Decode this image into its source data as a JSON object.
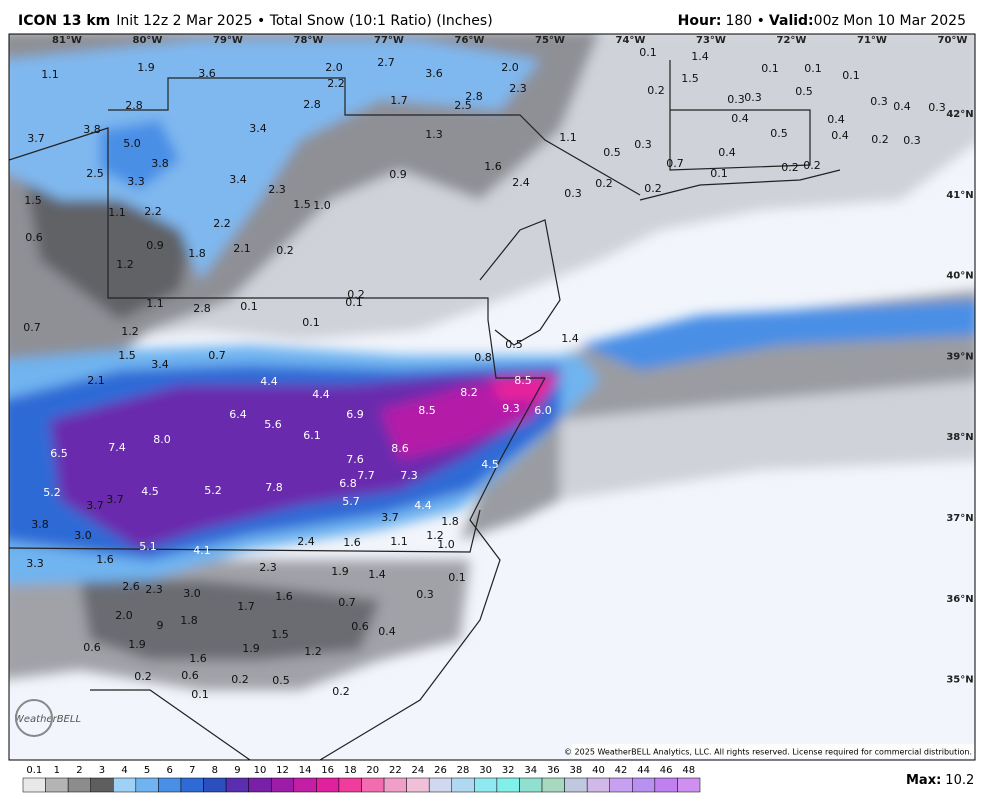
{
  "header": {
    "model": "ICON 13 km",
    "description": "Init 12z 2 Mar 2025 • Total Snow (10:1 Ratio) (Inches)",
    "hour_label": "Hour:",
    "hour_value": "180 •",
    "valid_label": "Valid:",
    "valid_value": "00z Mon 10 Mar 2025"
  },
  "longitude_labels": [
    "81°W",
    "80°W",
    "79°W",
    "78°W",
    "77°W",
    "76°W",
    "75°W",
    "74°W",
    "73°W",
    "72°W",
    "71°W",
    "70°W"
  ],
  "latitude_labels": [
    "42°N",
    "41°N",
    "40°N",
    "39°N",
    "38°N",
    "37°N",
    "36°N",
    "35°N"
  ],
  "snow_labels": [
    "1.1",
    "1.9",
    "3.6",
    "2.0",
    "2.2",
    "2.7",
    "3.6",
    "2.0",
    "2.3",
    "0.1",
    "1.4",
    "1.5",
    "0.1",
    "0.1",
    "0.1",
    "0.2",
    "0.5",
    "0.3",
    "0.3",
    "0.3",
    "0.4",
    "0.3",
    "2.8",
    "2.8",
    "1.7",
    "2.5",
    "2.8",
    "0.4",
    "0.4",
    "3.7",
    "3.8",
    "5.0",
    "3.4",
    "1.3",
    "1.1",
    "0.5",
    "0.3",
    "0.4",
    "0.2",
    "0.3",
    "0.5",
    "0.4",
    "0.7",
    "3.8",
    "1.6",
    "2.5",
    "3.3",
    "3.4",
    "0.9",
    "2.4",
    "0.1",
    "0.2",
    "0.2",
    "0.2",
    "0.2",
    "0.3",
    "1.5",
    "2.3",
    "1.5",
    "1.0",
    "1.1",
    "2.2",
    "2.2",
    "0.6",
    "0.9",
    "2.1",
    "0.2",
    "1.8",
    "1.2",
    "0.2",
    "0.1",
    "1.1",
    "2.8",
    "0.1",
    "0.1",
    "0.7",
    "1.2",
    "0.5",
    "1.4",
    "1.5",
    "0.7",
    "0.8",
    "3.4",
    "2.1",
    "4.4",
    "8.5",
    "4.4",
    "8.2",
    "9.3",
    "6.0",
    "6.4",
    "6.9",
    "8.5",
    "5.6",
    "6.1",
    "8.0",
    "7.4",
    "8.6",
    "6.5",
    "7.6",
    "4.5",
    "7.7",
    "7.3",
    "6.8",
    "7.8",
    "5.2",
    "4.5",
    "5.2",
    "3.7",
    "3.7",
    "5.7",
    "4.4",
    "3.8",
    "3.7",
    "1.8",
    "3.0",
    "1.2",
    "2.4",
    "1.6",
    "1.1",
    "1.0",
    "5.1",
    "4.1",
    "3.3",
    "1.6",
    "2.3",
    "1.9",
    "1.4",
    "0.1",
    "2.6",
    "2.3",
    "3.0",
    "1.6",
    "0.3",
    "1.7",
    "0.7",
    "2.0",
    "9",
    "1.8",
    "0.6",
    "0.4",
    "1.5",
    "0.6",
    "1.9",
    "1.9",
    "1.2",
    "1.6",
    "0.2",
    "0.6",
    "0.2",
    "0.5",
    "0.2",
    "0.1"
  ],
  "logo": "WeatherBELL",
  "copyright": "© 2025 WeatherBELL Analytics, LLC. All rights reserved. License required for commercial distribution.",
  "scale": {
    "labels": [
      "0.1",
      "1",
      "2",
      "3",
      "4",
      "5",
      "6",
      "7",
      "8",
      "9",
      "10",
      "12",
      "14",
      "16",
      "18",
      "20",
      "22",
      "24",
      "26",
      "28",
      "30",
      "32",
      "34",
      "36",
      "38",
      "40",
      "42",
      "44",
      "46",
      "48"
    ],
    "colors": [
      "#e8e8e8",
      "#b4b4b4",
      "#8c8c8c",
      "#5e5e5e",
      "#9fd0f5",
      "#6fb4f0",
      "#4a8fe6",
      "#2e6bd6",
      "#2c4fbf",
      "#5a2eb0",
      "#7a1fa8",
      "#9c1ca8",
      "#c31ea4",
      "#e0209c",
      "#f03c9c",
      "#f46cb0",
      "#f0a0c8",
      "#f0c0d8",
      "#d0d8f0",
      "#b0d8f0",
      "#90e8f0",
      "#80f0e8",
      "#90e0d0",
      "#a8d8c0",
      "#c0c8e0",
      "#d0b8e8",
      "#c8a0f0",
      "#b890f0",
      "#c080f0",
      "#d090f0"
    ]
  },
  "max_label": "Max:",
  "max_value": "10.2"
}
